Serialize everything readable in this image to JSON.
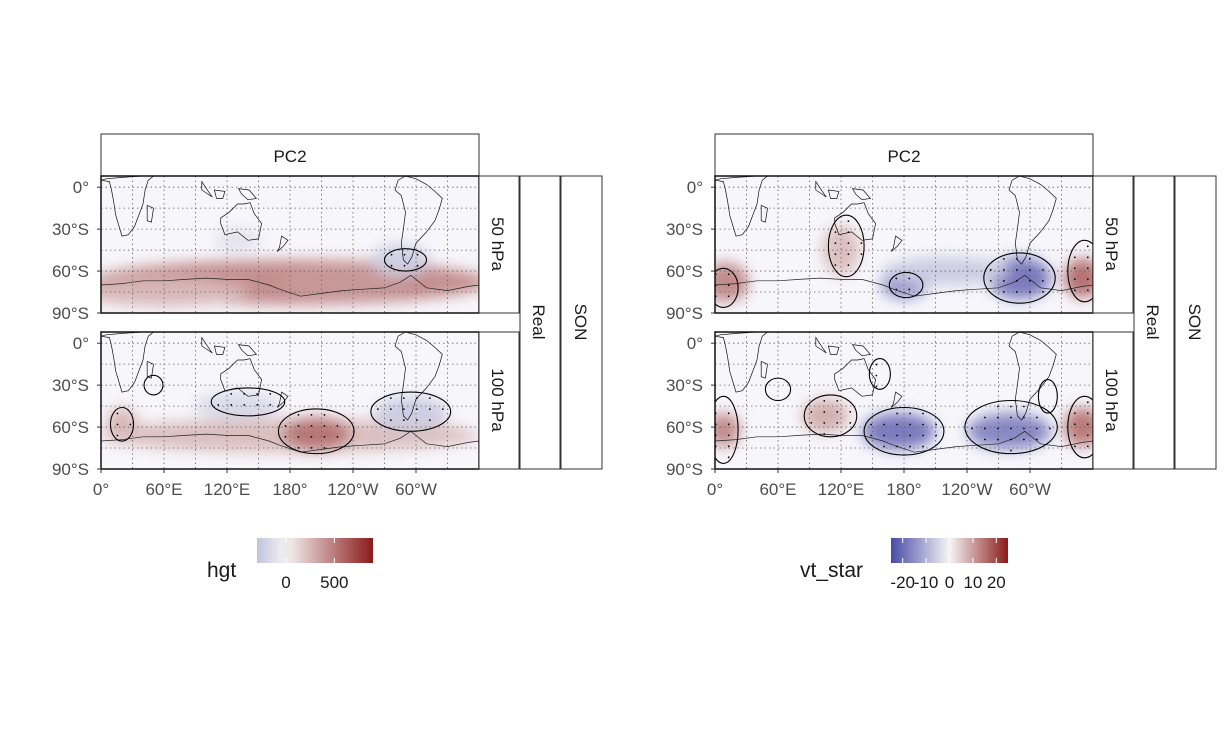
{
  "figure": {
    "panels": [
      {
        "strip_title": "PC2",
        "rows": [
          "50 hPa",
          "100 hPa"
        ],
        "strip_type": "Real",
        "strip_season": "SON",
        "variable": "hgt",
        "legend_ticks": [
          {
            "value": 0,
            "label": "0"
          },
          {
            "value": 500,
            "label": "500"
          }
        ],
        "scale_range": [
          -300,
          900
        ],
        "low_color": "#5e5cb0",
        "mid_color": "#f5f5f5",
        "high_color": "#8b1a1a"
      },
      {
        "strip_title": "PC2",
        "rows": [
          "50 hPa",
          "100 hPa"
        ],
        "strip_type": "Real",
        "strip_season": "SON",
        "variable": "vt_star",
        "legend_ticks": [
          {
            "value": -20,
            "label": "-20"
          },
          {
            "value": -10,
            "label": "-10"
          },
          {
            "value": 0,
            "label": "0"
          },
          {
            "value": 10,
            "label": "10"
          },
          {
            "value": 20,
            "label": "20"
          }
        ],
        "scale_range": [
          -25,
          25
        ],
        "low_color": "#4a4aa8",
        "mid_color": "#f5f5f5",
        "high_color": "#8b1a1a"
      }
    ],
    "axes": {
      "y_ticks": [
        {
          "lat": 0,
          "label": "0°"
        },
        {
          "lat": -30,
          "label": "30°S"
        },
        {
          "lat": -60,
          "label": "60°S"
        },
        {
          "lat": -90,
          "label": "90°S"
        }
      ],
      "x_ticks": [
        {
          "lon": 0,
          "label": "0°"
        },
        {
          "lon": 60,
          "label": "60°E"
        },
        {
          "lon": 120,
          "label": "120°E"
        },
        {
          "lon": 180,
          "label": "180°"
        },
        {
          "lon": 240,
          "label": "120°W"
        },
        {
          "lon": 300,
          "label": "60°W"
        }
      ],
      "lon_range": [
        0,
        360
      ],
      "lat_range": [
        -90,
        8
      ]
    }
  },
  "chart_data": [
    {
      "type": "heatmap",
      "panel": "hgt",
      "facet": "50 hPa",
      "blobs": [
        {
          "lon": 180,
          "lat": -68,
          "wlon": 190,
          "wlat": 16,
          "value": 420
        },
        {
          "lon": 230,
          "lat": -68,
          "wlon": 60,
          "wlat": 10,
          "value": 380
        },
        {
          "lon": 60,
          "lat": -75,
          "wlon": 80,
          "wlat": 10,
          "value": 250
        },
        {
          "lon": 285,
          "lat": -52,
          "wlon": 28,
          "wlat": 11,
          "value": -220
        },
        {
          "lon": 130,
          "lat": -38,
          "wlon": 22,
          "wlat": 8,
          "value": -110
        }
      ],
      "contours": [
        {
          "lon": 290,
          "lat": -52,
          "rlon": 20,
          "rlat": 8,
          "stipple": true
        }
      ]
    },
    {
      "type": "heatmap",
      "panel": "hgt",
      "facet": "100 hPa",
      "blobs": [
        {
          "lon": 180,
          "lat": -66,
          "wlon": 180,
          "wlat": 12,
          "value": 220
        },
        {
          "lon": 205,
          "lat": -65,
          "wlon": 32,
          "wlat": 12,
          "value": 520
        },
        {
          "lon": 20,
          "lat": -58,
          "wlon": 15,
          "wlat": 12,
          "value": 250
        },
        {
          "lon": 130,
          "lat": -45,
          "wlon": 40,
          "wlat": 10,
          "value": -160
        },
        {
          "lon": 295,
          "lat": -50,
          "wlon": 35,
          "wlat": 12,
          "value": -230
        }
      ],
      "contours": [
        {
          "lon": 205,
          "lat": -63,
          "rlon": 36,
          "rlat": 16,
          "stipple": true
        },
        {
          "lon": 140,
          "lat": -42,
          "rlon": 35,
          "rlat": 10,
          "stipple": true
        },
        {
          "lon": 295,
          "lat": -49,
          "rlon": 38,
          "rlat": 14,
          "stipple": true
        },
        {
          "lon": 20,
          "lat": -58,
          "rlon": 11,
          "rlat": 12,
          "stipple": true
        },
        {
          "lon": 50,
          "lat": -30,
          "rlon": 9,
          "rlat": 7,
          "stipple": false
        }
      ]
    },
    {
      "type": "heatmap",
      "panel": "vt_star",
      "facet": "50 hPa",
      "blobs": [
        {
          "lon": 290,
          "lat": -65,
          "wlon": 30,
          "wlat": 15,
          "value": -18
        },
        {
          "lon": 180,
          "lat": -70,
          "wlon": 22,
          "wlat": 10,
          "value": -14
        },
        {
          "lon": 10,
          "lat": -68,
          "wlon": 22,
          "wlat": 14,
          "value": 12
        },
        {
          "lon": 350,
          "lat": -65,
          "wlon": 18,
          "wlat": 14,
          "value": 15
        },
        {
          "lon": 120,
          "lat": -45,
          "wlon": 18,
          "wlat": 18,
          "value": 6
        },
        {
          "lon": 220,
          "lat": -60,
          "wlon": 60,
          "wlat": 10,
          "value": -6
        }
      ],
      "contours": [
        {
          "lon": 290,
          "lat": -65,
          "rlon": 34,
          "rlat": 18,
          "stipple": true
        },
        {
          "lon": 182,
          "lat": -70,
          "rlon": 16,
          "rlat": 9,
          "stipple": true
        },
        {
          "lon": 125,
          "lat": -42,
          "rlon": 17,
          "rlat": 22,
          "stipple": true
        },
        {
          "lon": 8,
          "lat": -72,
          "rlon": 14,
          "rlat": 14,
          "stipple": true
        },
        {
          "lon": 352,
          "lat": -60,
          "rlon": 16,
          "rlat": 22,
          "stipple": true
        }
      ]
    },
    {
      "type": "heatmap",
      "panel": "vt_star",
      "facet": "100 hPa",
      "blobs": [
        {
          "lon": 175,
          "lat": -63,
          "wlon": 35,
          "wlat": 13,
          "value": -18
        },
        {
          "lon": 280,
          "lat": -63,
          "wlon": 40,
          "wlat": 13,
          "value": -16
        },
        {
          "lon": 105,
          "lat": -52,
          "wlon": 22,
          "wlat": 12,
          "value": 8
        },
        {
          "lon": 8,
          "lat": -62,
          "wlon": 16,
          "wlat": 12,
          "value": 12
        },
        {
          "lon": 350,
          "lat": -60,
          "wlon": 18,
          "wlat": 14,
          "value": 14
        }
      ],
      "contours": [
        {
          "lon": 180,
          "lat": -63,
          "rlon": 38,
          "rlat": 17,
          "stipple": true
        },
        {
          "lon": 282,
          "lat": -60,
          "rlon": 44,
          "rlat": 19,
          "stipple": true
        },
        {
          "lon": 110,
          "lat": -52,
          "rlon": 25,
          "rlat": 15,
          "stipple": true
        },
        {
          "lon": 8,
          "lat": -62,
          "rlon": 14,
          "rlat": 24,
          "stipple": true
        },
        {
          "lon": 352,
          "lat": -60,
          "rlon": 16,
          "rlat": 22,
          "stipple": true
        },
        {
          "lon": 157,
          "lat": -22,
          "rlon": 10,
          "rlat": 11,
          "stipple": true
        },
        {
          "lon": 317,
          "lat": -38,
          "rlon": 9,
          "rlat": 12,
          "stipple": false
        },
        {
          "lon": 60,
          "lat": -33,
          "rlon": 12,
          "rlat": 8,
          "stipple": false
        }
      ]
    }
  ]
}
